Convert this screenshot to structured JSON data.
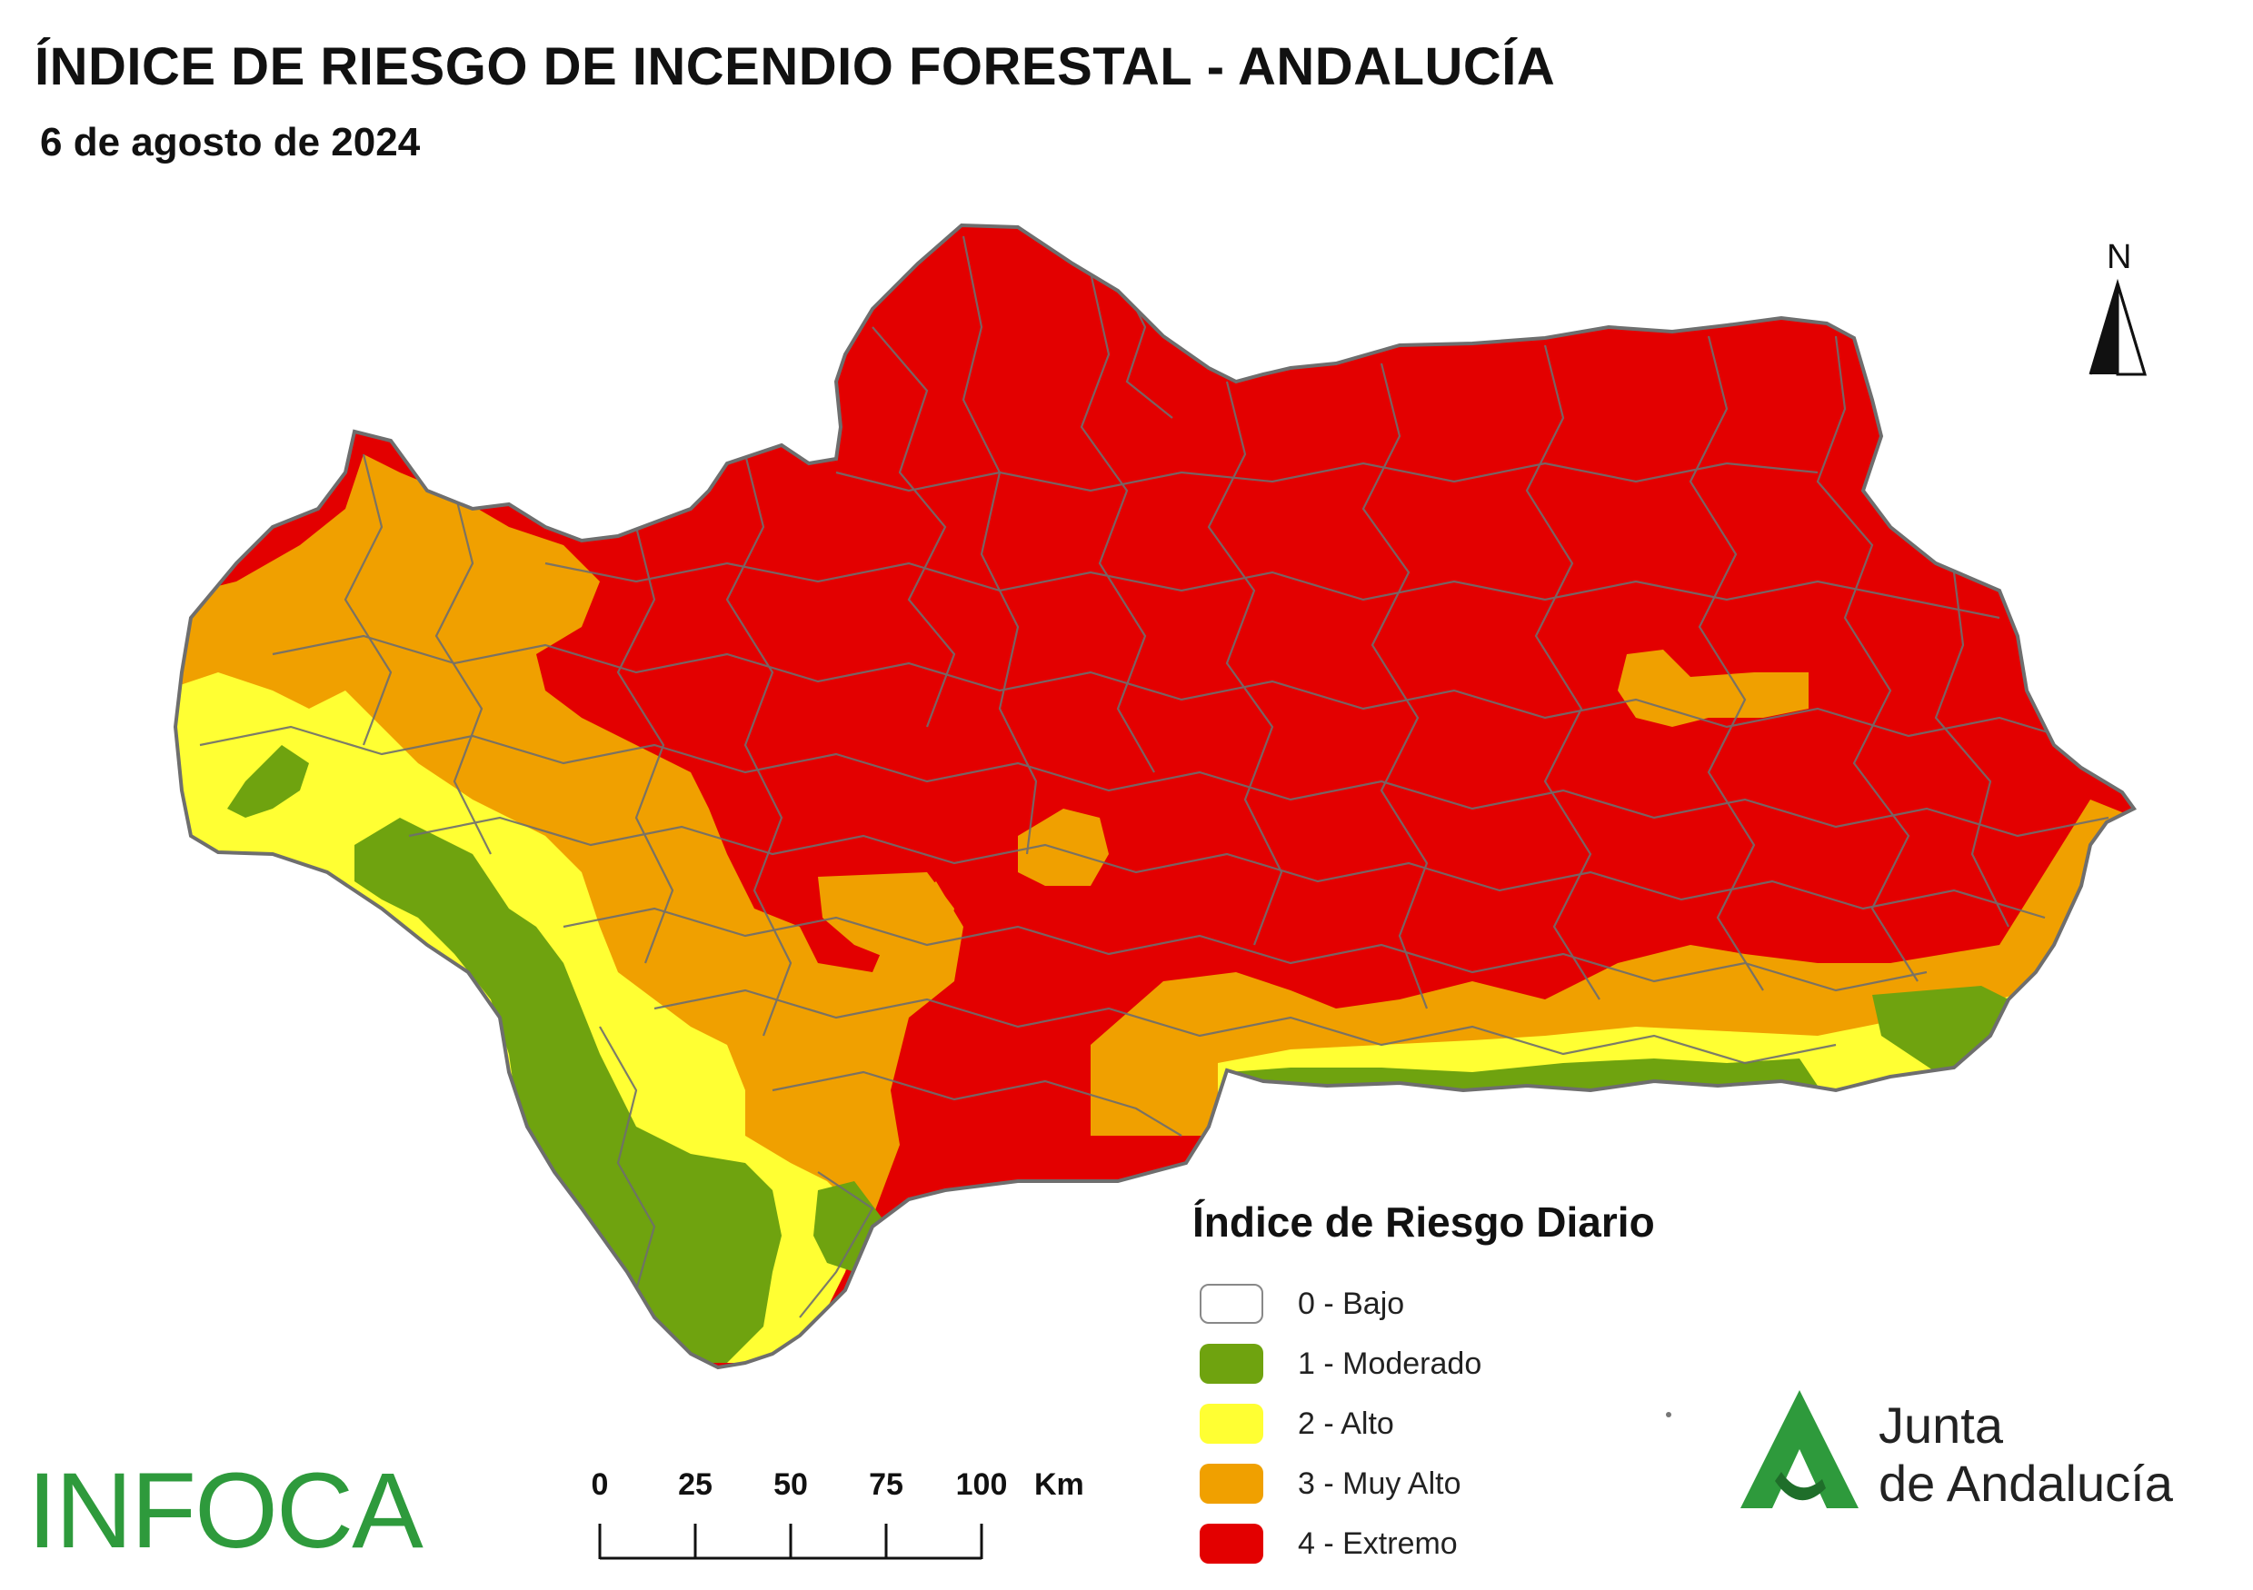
{
  "header": {
    "title": "ÍNDICE DE RIESGO DE INCENDIO FORESTAL - ANDALUCÍA",
    "date": "6 de agosto de 2024"
  },
  "north_arrow": {
    "label": "N"
  },
  "legend": {
    "title": "Índice de Riesgo Diario",
    "items": [
      {
        "label": "0 - Bajo",
        "color": "#ffffff"
      },
      {
        "label": "1 - Moderado",
        "color": "#6fa30f"
      },
      {
        "label": "2 - Alto",
        "color": "#ffff33"
      },
      {
        "label": "3 - Muy Alto",
        "color": "#f0a000"
      },
      {
        "label": "4 - Extremo",
        "color": "#e30000"
      }
    ]
  },
  "scale_bar": {
    "ticks": [
      "0",
      "25",
      "50",
      "75",
      "100"
    ],
    "unit": "Km"
  },
  "logos": {
    "infoca": "INFOCA",
    "junta_line1": "Junta",
    "junta_line2": "de Andalucía"
  },
  "colors": {
    "boundary": "#6e6e6e",
    "extreme": "#e30000",
    "very_high": "#f0a000",
    "high": "#ffff33",
    "moderate": "#6fa30f",
    "junta_green": "#2e9a3c"
  }
}
